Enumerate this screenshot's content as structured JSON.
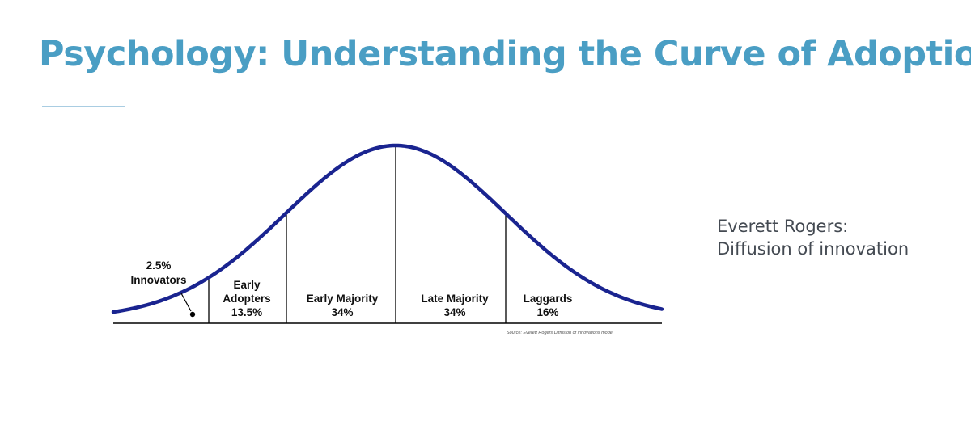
{
  "title": "Psychology: Understanding the Curve of Adoption",
  "side_note": {
    "line1": "Everett Rogers:",
    "line2": "Diffusion of innovation"
  },
  "diagram": {
    "curve_color": "#1a2490",
    "segments": [
      {
        "id": "innovators",
        "label_line1": "2.5%",
        "label_line2": "Innovators"
      },
      {
        "id": "early-adopters",
        "label_line1": "Early",
        "label_line2": "Adopters",
        "label_line3": "13.5%"
      },
      {
        "id": "early-majority",
        "label_line1": "Early Majority",
        "label_line2": "34%"
      },
      {
        "id": "late-majority",
        "label_line1": "Late Majority",
        "label_line2": "34%"
      },
      {
        "id": "laggards",
        "label_line1": "Laggards",
        "label_line2": "16%"
      }
    ],
    "source": "Source: Everett Rogers Diffusion of innovations model"
  }
}
